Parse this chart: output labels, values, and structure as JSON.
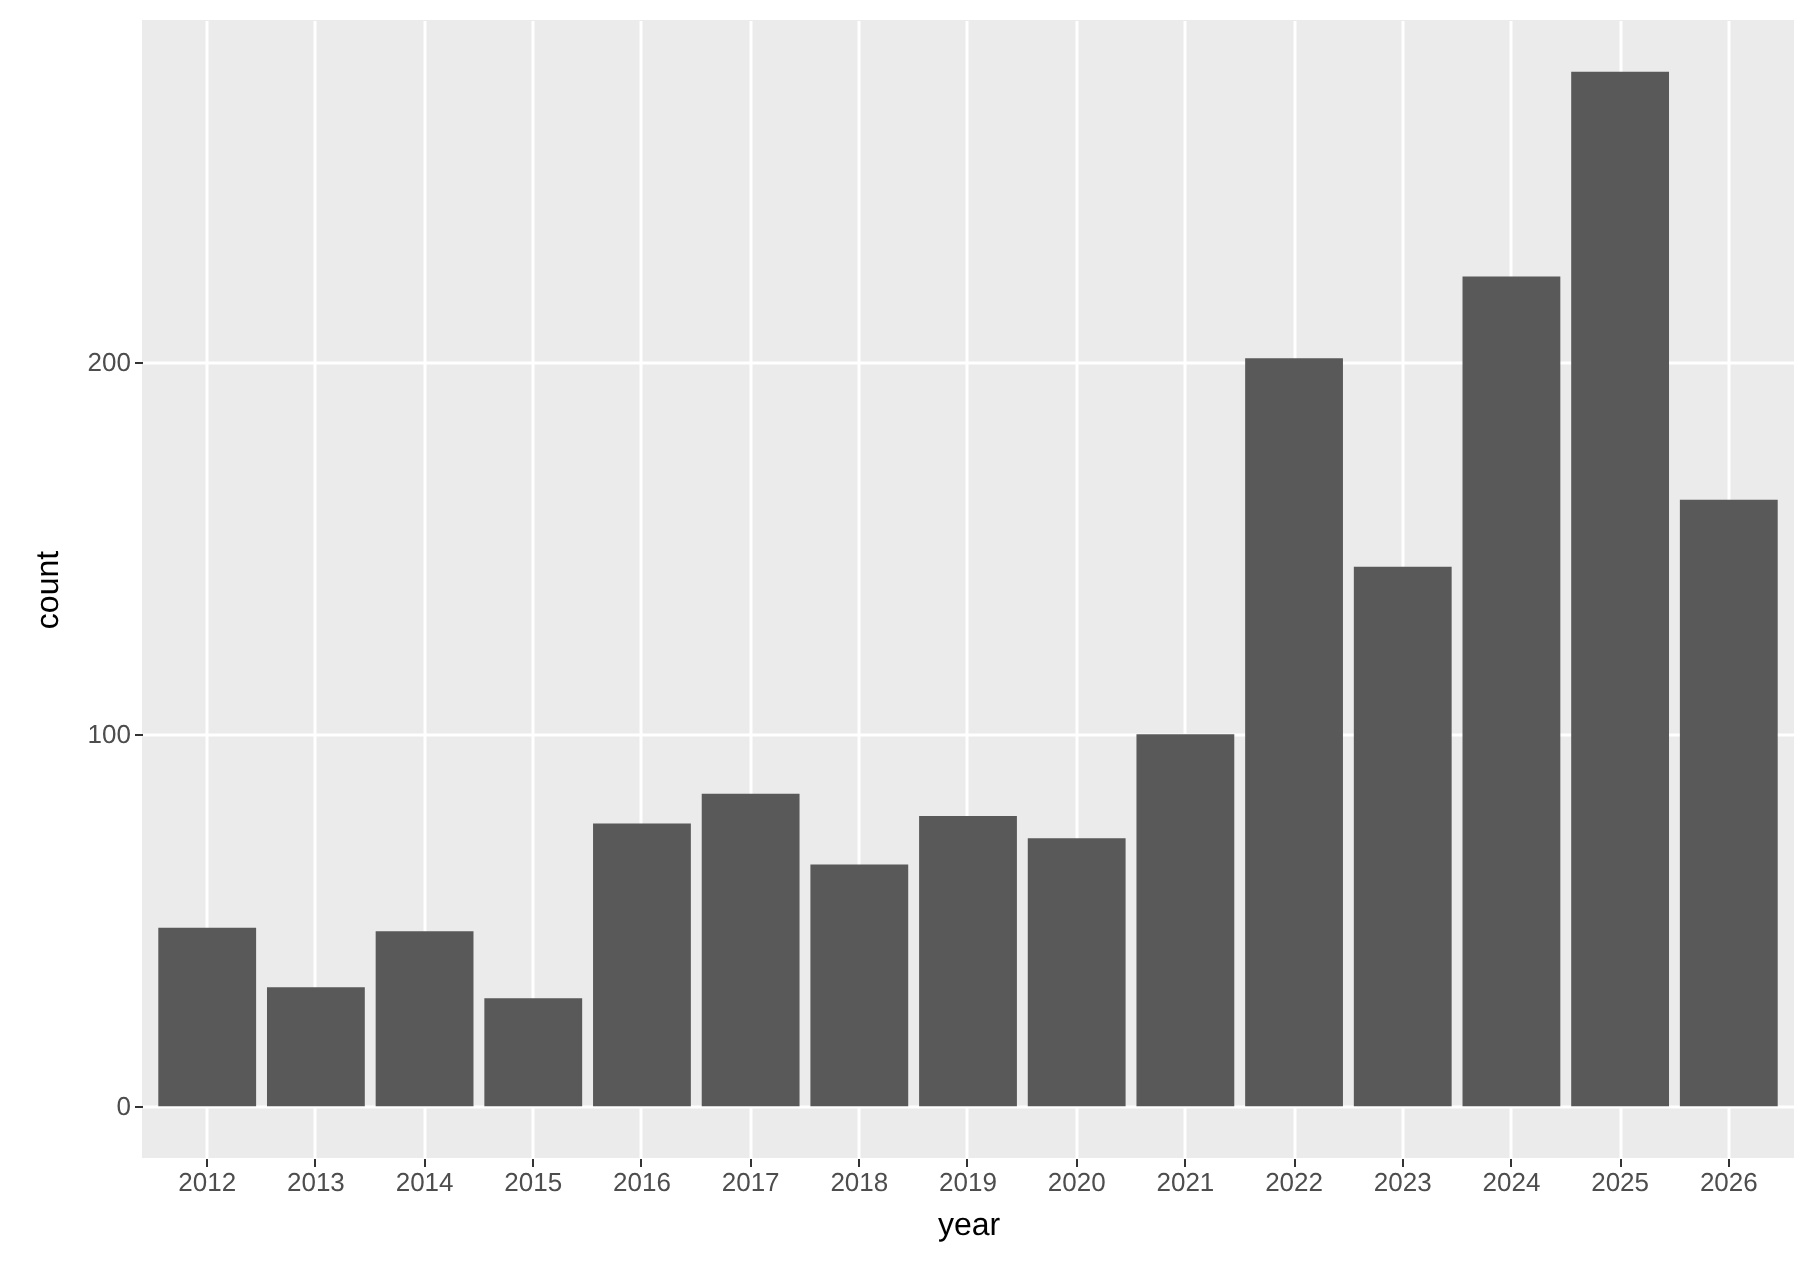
{
  "chart_data": {
    "type": "bar",
    "xlabel": "year",
    "ylabel": "count",
    "categories": [
      "2012",
      "2013",
      "2014",
      "2015",
      "2016",
      "2017",
      "2018",
      "2019",
      "2020",
      "2021",
      "2022",
      "2023",
      "2024",
      "2025",
      "2026"
    ],
    "values": [
      48,
      32,
      47,
      29,
      76,
      84,
      65,
      78,
      72,
      100,
      201,
      145,
      223,
      278,
      163
    ],
    "color": "#595959",
    "ylim": [
      -13.9,
      291.9
    ],
    "yticks": [
      0,
      100,
      200
    ],
    "grid": true
  }
}
